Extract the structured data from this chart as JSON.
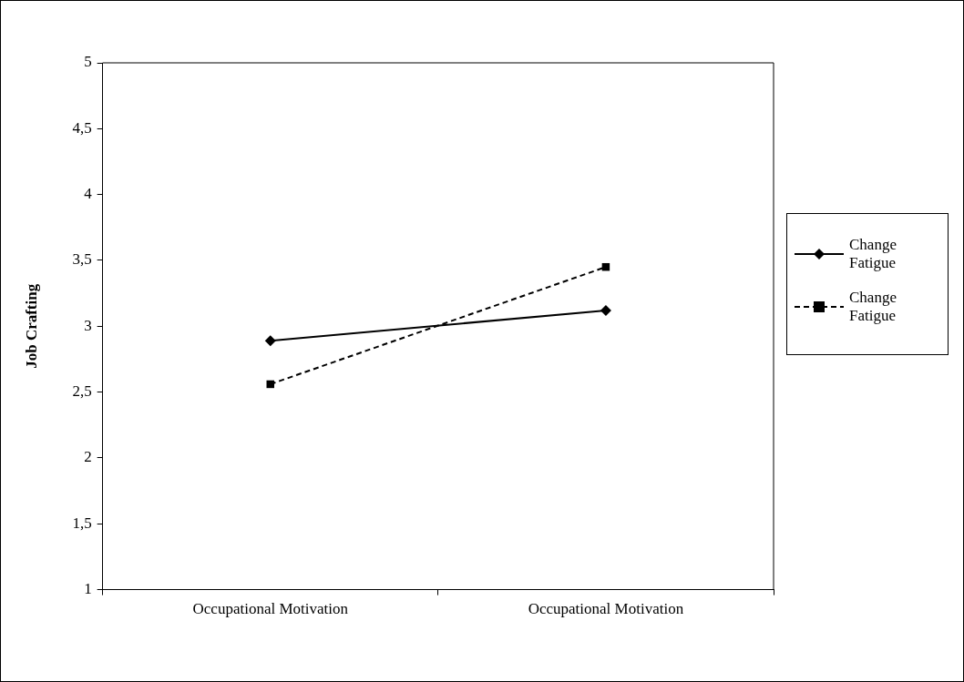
{
  "chart_data": {
    "type": "line",
    "ylabel": "Job Crafting",
    "categories": [
      "Occupational Motivation",
      "Occupational Motivation"
    ],
    "series": [
      {
        "name": "Change Fatigue",
        "color": "#000000",
        "values": [
          2.89,
          3.12
        ],
        "marker": "diamond",
        "line_style": "solid"
      },
      {
        "name": "Change Fatigue",
        "color": "#000000",
        "values": [
          2.56,
          3.45
        ],
        "marker": "square",
        "line_style": "dashed"
      }
    ],
    "ylim": [
      1,
      5
    ],
    "yticks": [
      1,
      {
        "value": 1.5,
        "label": "1,5"
      },
      2,
      {
        "value": 2.5,
        "label": "2,5"
      },
      3,
      {
        "value": 3.5,
        "label": "3,5"
      },
      4,
      {
        "value": 4.5,
        "label": "4,5"
      },
      5
    ],
    "grid": false,
    "legend": "right"
  }
}
